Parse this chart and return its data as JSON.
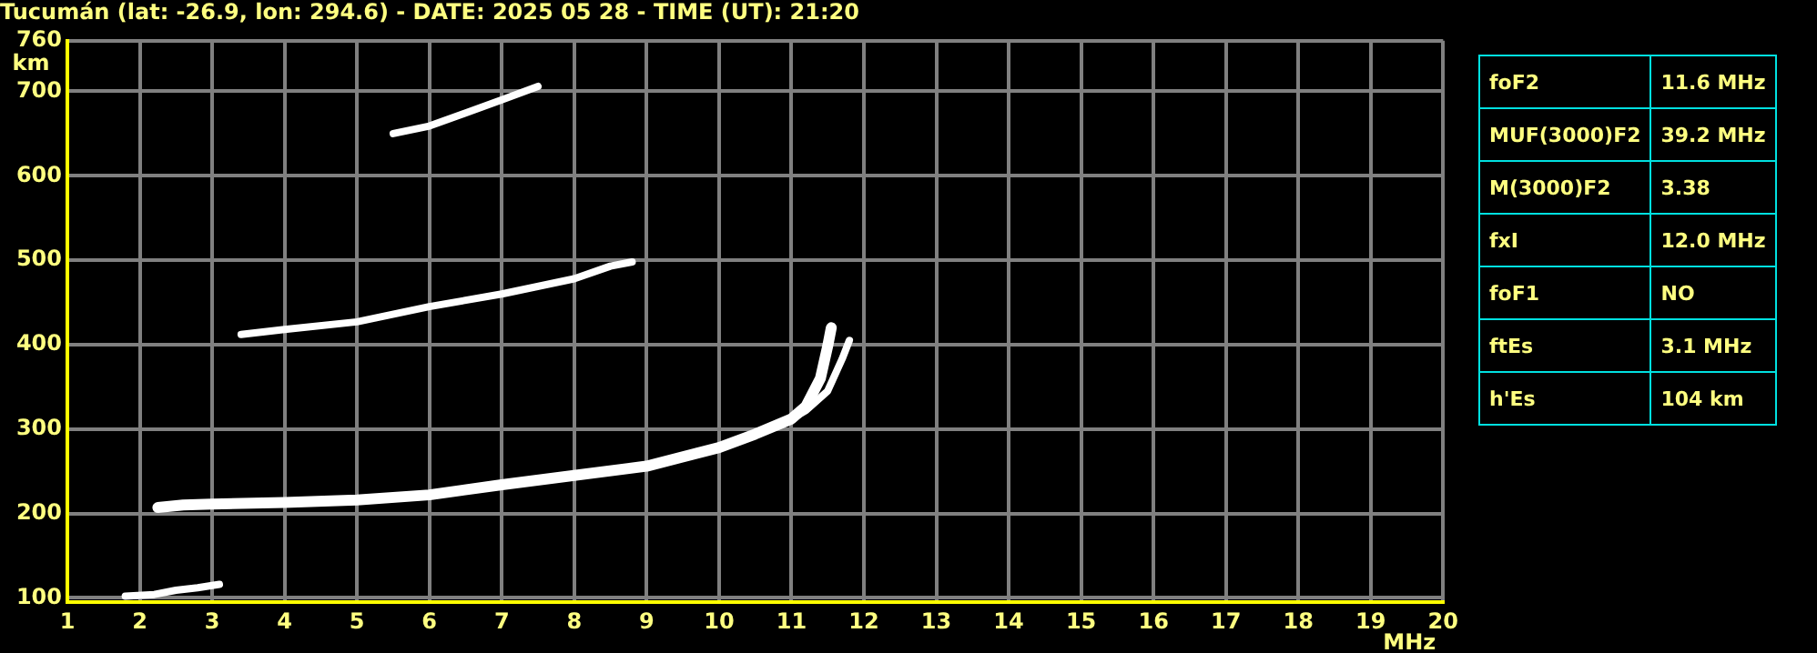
{
  "chart_data": [
    {
      "type": "line",
      "title": "Tucumán (lat: -26.9, lon: 294.6) - DATE: 2025 05 28 - TIME (UT): 21:20",
      "xlabel": "MHz",
      "ylabel": "km",
      "xlim": [
        1,
        20
      ],
      "ylim": [
        95,
        760
      ],
      "xticks": [
        1,
        2,
        3,
        4,
        5,
        6,
        7,
        8,
        9,
        10,
        11,
        12,
        13,
        14,
        15,
        16,
        17,
        18,
        19,
        20
      ],
      "yticks": [
        100,
        200,
        300,
        400,
        500,
        600,
        700,
        760
      ],
      "grid": true,
      "marker": "none",
      "line_style": "solid",
      "series": [
        {
          "color": "#ffffff",
          "x": [
            1.8,
            2.2,
            2.5,
            2.8,
            3.1
          ],
          "values": [
            102,
            104,
            109,
            112,
            116
          ]
        },
        {
          "color": "#ffffff",
          "x": [
            2.25,
            2.6,
            3,
            4,
            5,
            6,
            7,
            8,
            9,
            10,
            10.5,
            11,
            11.2,
            11.4,
            11.5,
            11.55
          ],
          "values": [
            207,
            210,
            211,
            213,
            216,
            222,
            234,
            245,
            256,
            278,
            294,
            312,
            327,
            360,
            398,
            420
          ]
        },
        {
          "color": "#ffffff",
          "x": [
            10.8,
            11,
            11.2,
            11.5,
            11.7,
            11.8
          ],
          "values": [
            305,
            312,
            322,
            345,
            383,
            405
          ]
        },
        {
          "color": "#ffffff",
          "x": [
            3.4,
            4,
            5,
            6,
            7,
            8,
            8.5,
            8.8
          ],
          "values": [
            412,
            418,
            427,
            445,
            460,
            478,
            493,
            498
          ]
        },
        {
          "color": "#ffffff",
          "x": [
            5.5,
            6,
            7,
            7.5
          ],
          "values": [
            650,
            659,
            690,
            706
          ]
        }
      ]
    },
    {
      "type": "other",
      "annotations": [
        "foF2",
        "11.6 MHz",
        "MUF(3000)F2",
        "39.2 MHz",
        "M(3000)F2",
        "3.38",
        "fxI",
        "12.0 MHz",
        "foF1",
        "NO",
        "ftEs",
        "3.1 MHz",
        "h'Es",
        "104 km"
      ]
    }
  ]
}
